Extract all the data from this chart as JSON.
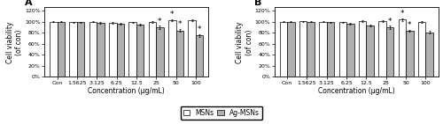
{
  "categories": [
    "Con",
    "1.5625",
    "3.125",
    "6.25",
    "12.5",
    "25",
    "50",
    "100"
  ],
  "panel_A": {
    "title": "A",
    "MSNs": [
      100,
      99,
      100,
      98,
      99,
      100,
      103,
      103
    ],
    "AgMSNs": [
      100,
      99,
      98,
      97,
      95,
      90,
      84,
      75
    ],
    "MSNs_err": [
      1.0,
      1.0,
      1.0,
      1.5,
      1.0,
      1.5,
      1.5,
      1.5
    ],
    "AgMSNs_err": [
      1.0,
      1.0,
      1.5,
      1.5,
      2.0,
      2.5,
      2.5,
      3.0
    ],
    "star_MSNs": [
      false,
      false,
      false,
      false,
      false,
      false,
      true,
      false
    ],
    "star_AgMSNs": [
      false,
      false,
      false,
      false,
      false,
      true,
      true,
      true
    ]
  },
  "panel_B": {
    "title": "B",
    "MSNs": [
      100,
      101,
      100,
      99,
      101,
      101,
      104,
      100
    ],
    "AgMSNs": [
      100,
      100,
      99,
      97,
      93,
      90,
      84,
      81
    ],
    "MSNs_err": [
      1.0,
      1.0,
      1.0,
      1.0,
      1.5,
      2.0,
      2.0,
      1.5
    ],
    "AgMSNs_err": [
      1.0,
      1.0,
      1.0,
      1.5,
      1.5,
      2.5,
      2.0,
      2.0
    ],
    "star_MSNs": [
      false,
      false,
      false,
      false,
      false,
      false,
      true,
      false
    ],
    "star_AgMSNs": [
      false,
      false,
      false,
      false,
      false,
      true,
      true,
      false
    ]
  },
  "ylabel": "Cell viability\n(of con)",
  "xlabel": "Concentration (μg/mL)",
  "ylim": [
    0,
    126
  ],
  "yticks": [
    0,
    20,
    40,
    60,
    80,
    100,
    120
  ],
  "yticklabels": [
    "0%",
    "20%",
    "40%",
    "60%",
    "80%",
    "100%",
    "120%"
  ],
  "legend_labels": [
    "MSNs",
    "Ag-MSNs"
  ],
  "msn_color": "#ffffff",
  "agmsn_color": "#b0b0b0",
  "edge_color": "#000000",
  "bar_width": 0.38,
  "fontsize_title": 8,
  "fontsize_axis": 5.5,
  "fontsize_tick": 4.5,
  "fontsize_legend": 5.5,
  "fontsize_star": 6.5
}
